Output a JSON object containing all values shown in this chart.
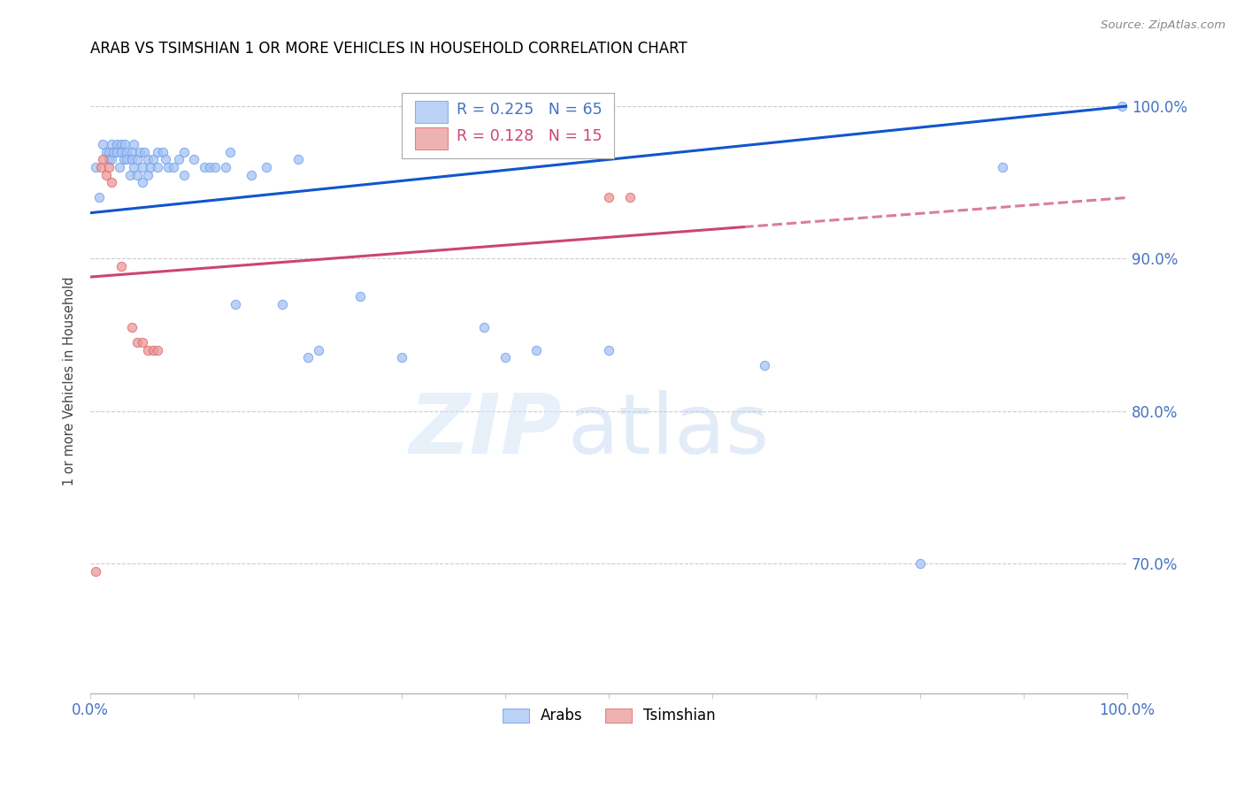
{
  "title": "ARAB VS TSIMSHIAN 1 OR MORE VEHICLES IN HOUSEHOLD CORRELATION CHART",
  "source": "Source: ZipAtlas.com",
  "ylabel": "1 or more Vehicles in Household",
  "watermark_zip": "ZIP",
  "watermark_atlas": "atlas",
  "legend_blue": {
    "R": 0.225,
    "N": 65
  },
  "legend_pink": {
    "R": 0.128,
    "N": 15
  },
  "xlim": [
    0.0,
    1.0
  ],
  "ylim": [
    0.615,
    1.025
  ],
  "yticks": [
    0.7,
    0.8,
    0.9,
    1.0
  ],
  "ytick_labels": [
    "70.0%",
    "80.0%",
    "90.0%",
    "100.0%"
  ],
  "xtick_vals": [
    0.0,
    0.1,
    0.2,
    0.3,
    0.4,
    0.5,
    0.6,
    0.7,
    0.8,
    0.9,
    1.0
  ],
  "blue_color": "#a4c2f4",
  "blue_edge": "#6d9eeb",
  "pink_color": "#ea9999",
  "pink_edge": "#e06666",
  "trend_blue": "#1155cc",
  "trend_pink": "#cc4477",
  "background": "#ffffff",
  "grid_color": "#cccccc",
  "axis_label_color": "#4472c4",
  "title_color": "#000000",
  "arab_x": [
    0.005,
    0.008,
    0.012,
    0.015,
    0.018,
    0.018,
    0.02,
    0.02,
    0.022,
    0.025,
    0.025,
    0.028,
    0.03,
    0.03,
    0.032,
    0.033,
    0.035,
    0.035,
    0.038,
    0.04,
    0.04,
    0.042,
    0.042,
    0.045,
    0.045,
    0.048,
    0.05,
    0.05,
    0.052,
    0.055,
    0.055,
    0.058,
    0.06,
    0.065,
    0.065,
    0.07,
    0.072,
    0.075,
    0.08,
    0.085,
    0.09,
    0.09,
    0.1,
    0.11,
    0.115,
    0.12,
    0.13,
    0.135,
    0.14,
    0.155,
    0.17,
    0.185,
    0.2,
    0.21,
    0.22,
    0.26,
    0.3,
    0.38,
    0.4,
    0.43,
    0.5,
    0.65,
    0.8,
    0.88,
    0.995
  ],
  "arab_y": [
    0.96,
    0.94,
    0.975,
    0.97,
    0.97,
    0.965,
    0.975,
    0.965,
    0.97,
    0.975,
    0.97,
    0.96,
    0.975,
    0.97,
    0.965,
    0.975,
    0.97,
    0.965,
    0.955,
    0.97,
    0.965,
    0.975,
    0.96,
    0.965,
    0.955,
    0.97,
    0.96,
    0.95,
    0.97,
    0.965,
    0.955,
    0.96,
    0.965,
    0.97,
    0.96,
    0.97,
    0.965,
    0.96,
    0.96,
    0.965,
    0.97,
    0.955,
    0.965,
    0.96,
    0.96,
    0.96,
    0.96,
    0.97,
    0.87,
    0.955,
    0.96,
    0.87,
    0.965,
    0.835,
    0.84,
    0.875,
    0.835,
    0.855,
    0.835,
    0.84,
    0.84,
    0.83,
    0.7,
    0.96,
    1.0
  ],
  "tsimshian_x": [
    0.005,
    0.01,
    0.012,
    0.015,
    0.018,
    0.02,
    0.03,
    0.04,
    0.045,
    0.05,
    0.055,
    0.06,
    0.065,
    0.5,
    0.52
  ],
  "tsimshian_y": [
    0.695,
    0.96,
    0.965,
    0.955,
    0.96,
    0.95,
    0.895,
    0.855,
    0.845,
    0.845,
    0.84,
    0.84,
    0.84,
    0.94,
    0.94
  ],
  "trend_blue_x0": 0.0,
  "trend_blue_y0": 0.93,
  "trend_blue_x1": 1.0,
  "trend_blue_y1": 1.0,
  "trend_pink_x0": 0.0,
  "trend_pink_y0": 0.888,
  "trend_pink_x1": 1.0,
  "trend_pink_y1": 0.94,
  "trend_pink_solid_end": 0.63
}
